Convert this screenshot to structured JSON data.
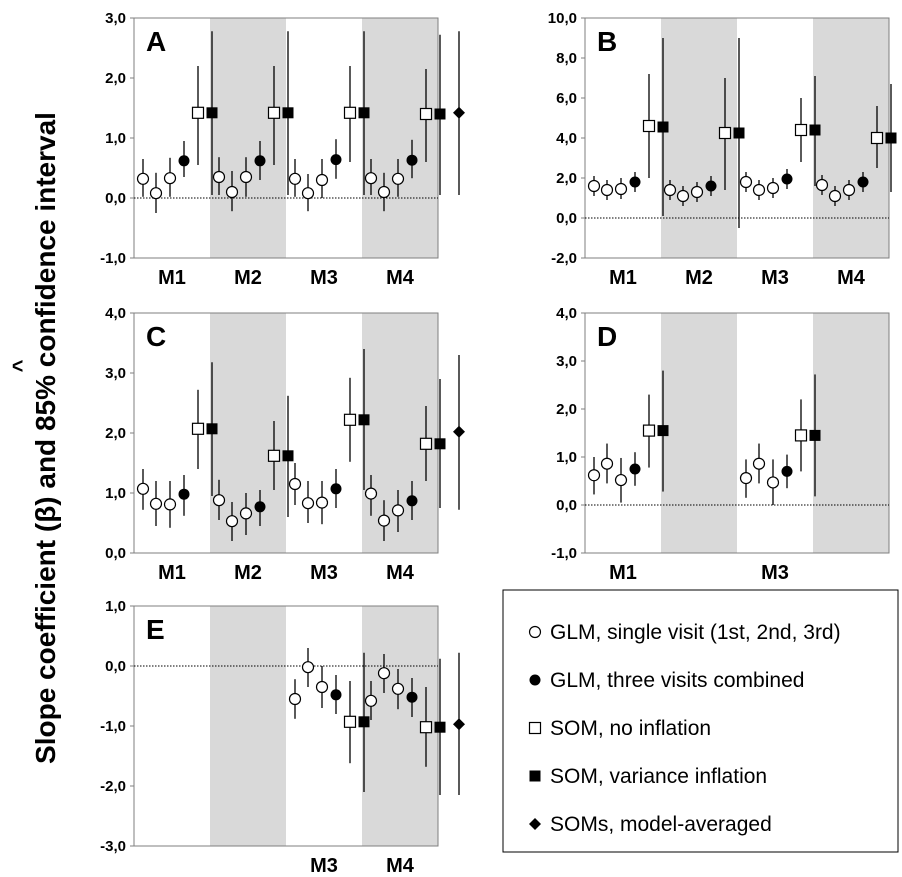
{
  "figure": {
    "ylabel": "Slope coefficient (β) and 85% confidence interval",
    "ylabel_hat": "^"
  },
  "legend": [
    {
      "marker": "circle-open",
      "label": "GLM, single visit (1st, 2nd, 3rd)"
    },
    {
      "marker": "circle-filled",
      "label": "GLM, three visits combined"
    },
    {
      "marker": "square-open",
      "label": "SOM, no inflation"
    },
    {
      "marker": "square-filled",
      "label": "SOM, variance inflation"
    },
    {
      "marker": "diamond-filled",
      "label": "SOMs, model-averaged"
    }
  ],
  "chart_data": [
    {
      "type": "scatter",
      "panel": "A",
      "ylim": [
        -1,
        3
      ],
      "yticks": [
        "-1,0",
        "0,0",
        "1,0",
        "2,0",
        "3,0"
      ],
      "categories": [
        "M1",
        "M2",
        "M3",
        "M4"
      ],
      "shaded": [
        1,
        3
      ],
      "points": [
        {
          "cat": 0,
          "slot": 0,
          "m": "co",
          "y": 0.32,
          "lo": 0.02,
          "hi": 0.65
        },
        {
          "cat": 0,
          "slot": 1,
          "m": "co",
          "y": 0.08,
          "lo": -0.25,
          "hi": 0.42
        },
        {
          "cat": 0,
          "slot": 2,
          "m": "co",
          "y": 0.33,
          "lo": 0.02,
          "hi": 0.67
        },
        {
          "cat": 0,
          "slot": 3,
          "m": "cf",
          "y": 0.62,
          "lo": 0.35,
          "hi": 0.95
        },
        {
          "cat": 0,
          "slot": 4,
          "m": "so",
          "y": 1.42,
          "lo": 0.55,
          "hi": 2.2
        },
        {
          "cat": 0,
          "slot": 5,
          "m": "sf",
          "y": 1.42,
          "lo": 0.05,
          "hi": 2.78
        },
        {
          "cat": 1,
          "slot": 0,
          "m": "co",
          "y": 0.35,
          "lo": 0.05,
          "hi": 0.68
        },
        {
          "cat": 1,
          "slot": 1,
          "m": "co",
          "y": 0.1,
          "lo": -0.22,
          "hi": 0.45
        },
        {
          "cat": 1,
          "slot": 2,
          "m": "co",
          "y": 0.35,
          "lo": 0.02,
          "hi": 0.68
        },
        {
          "cat": 1,
          "slot": 3,
          "m": "cf",
          "y": 0.62,
          "lo": 0.3,
          "hi": 0.95
        },
        {
          "cat": 1,
          "slot": 4,
          "m": "so",
          "y": 1.42,
          "lo": 0.55,
          "hi": 2.2
        },
        {
          "cat": 1,
          "slot": 5,
          "m": "sf",
          "y": 1.42,
          "lo": 0.05,
          "hi": 2.78
        },
        {
          "cat": 2,
          "slot": 0,
          "m": "co",
          "y": 0.32,
          "lo": 0.02,
          "hi": 0.65
        },
        {
          "cat": 2,
          "slot": 1,
          "m": "co",
          "y": 0.08,
          "lo": -0.22,
          "hi": 0.4
        },
        {
          "cat": 2,
          "slot": 2,
          "m": "co",
          "y": 0.3,
          "lo": 0.0,
          "hi": 0.65
        },
        {
          "cat": 2,
          "slot": 3,
          "m": "cf",
          "y": 0.64,
          "lo": 0.32,
          "hi": 0.98
        },
        {
          "cat": 2,
          "slot": 4,
          "m": "so",
          "y": 1.42,
          "lo": 0.6,
          "hi": 2.2
        },
        {
          "cat": 2,
          "slot": 5,
          "m": "sf",
          "y": 1.42,
          "lo": 0.05,
          "hi": 2.78
        },
        {
          "cat": 3,
          "slot": 0,
          "m": "co",
          "y": 0.33,
          "lo": 0.05,
          "hi": 0.65
        },
        {
          "cat": 3,
          "slot": 1,
          "m": "co",
          "y": 0.1,
          "lo": -0.22,
          "hi": 0.42
        },
        {
          "cat": 3,
          "slot": 2,
          "m": "co",
          "y": 0.32,
          "lo": 0.02,
          "hi": 0.65
        },
        {
          "cat": 3,
          "slot": 3,
          "m": "cf",
          "y": 0.63,
          "lo": 0.33,
          "hi": 0.97
        },
        {
          "cat": 3,
          "slot": 4,
          "m": "so",
          "y": 1.4,
          "lo": 0.6,
          "hi": 2.15
        },
        {
          "cat": 3,
          "slot": 5,
          "m": "sf",
          "y": 1.4,
          "lo": 0.05,
          "hi": 2.72
        },
        {
          "cat": 3,
          "slot": 7,
          "m": "df",
          "y": 1.42,
          "lo": 0.05,
          "hi": 2.78
        }
      ]
    },
    {
      "type": "scatter",
      "panel": "B",
      "ylim": [
        -2,
        10
      ],
      "yticks": [
        "-2,0",
        "0,0",
        "2,0",
        "4,0",
        "6,0",
        "8,0",
        "10,0"
      ],
      "categories": [
        "M1",
        "M2",
        "M3",
        "M4"
      ],
      "shaded": [
        1,
        3
      ],
      "points": [
        {
          "cat": 0,
          "slot": 0,
          "m": "co",
          "y": 1.6,
          "lo": 1.1,
          "hi": 2.1
        },
        {
          "cat": 0,
          "slot": 1,
          "m": "co",
          "y": 1.4,
          "lo": 0.9,
          "hi": 1.9
        },
        {
          "cat": 0,
          "slot": 2,
          "m": "co",
          "y": 1.45,
          "lo": 0.95,
          "hi": 2.0
        },
        {
          "cat": 0,
          "slot": 3,
          "m": "cf",
          "y": 1.8,
          "lo": 1.3,
          "hi": 2.3
        },
        {
          "cat": 0,
          "slot": 4,
          "m": "so",
          "y": 4.6,
          "lo": 2.0,
          "hi": 7.2
        },
        {
          "cat": 0,
          "slot": 5,
          "m": "sf",
          "y": 4.55,
          "lo": 0.1,
          "hi": 9.0
        },
        {
          "cat": 1,
          "slot": 0,
          "m": "co",
          "y": 1.4,
          "lo": 0.9,
          "hi": 1.9
        },
        {
          "cat": 1,
          "slot": 1,
          "m": "co",
          "y": 1.1,
          "lo": 0.6,
          "hi": 1.6
        },
        {
          "cat": 1,
          "slot": 2,
          "m": "co",
          "y": 1.3,
          "lo": 0.8,
          "hi": 1.8
        },
        {
          "cat": 1,
          "slot": 3,
          "m": "cf",
          "y": 1.6,
          "lo": 1.1,
          "hi": 2.1
        },
        {
          "cat": 1,
          "slot": 4,
          "m": "so",
          "y": 4.25,
          "lo": 1.4,
          "hi": 7.0
        },
        {
          "cat": 1,
          "slot": 5,
          "m": "sf",
          "y": 4.25,
          "lo": -0.5,
          "hi": 9.0
        },
        {
          "cat": 2,
          "slot": 0,
          "m": "co",
          "y": 1.8,
          "lo": 1.3,
          "hi": 2.3
        },
        {
          "cat": 2,
          "slot": 1,
          "m": "co",
          "y": 1.4,
          "lo": 0.9,
          "hi": 1.9
        },
        {
          "cat": 2,
          "slot": 2,
          "m": "co",
          "y": 1.5,
          "lo": 1.0,
          "hi": 2.0
        },
        {
          "cat": 2,
          "slot": 3,
          "m": "cf",
          "y": 1.95,
          "lo": 1.45,
          "hi": 2.45
        },
        {
          "cat": 2,
          "slot": 4,
          "m": "so",
          "y": 4.4,
          "lo": 2.8,
          "hi": 6.0
        },
        {
          "cat": 2,
          "slot": 5,
          "m": "sf",
          "y": 4.4,
          "lo": 1.6,
          "hi": 7.1
        },
        {
          "cat": 3,
          "slot": 0,
          "m": "co",
          "y": 1.65,
          "lo": 1.15,
          "hi": 2.15
        },
        {
          "cat": 3,
          "slot": 1,
          "m": "co",
          "y": 1.1,
          "lo": 0.6,
          "hi": 1.6
        },
        {
          "cat": 3,
          "slot": 2,
          "m": "co",
          "y": 1.4,
          "lo": 0.9,
          "hi": 1.9
        },
        {
          "cat": 3,
          "slot": 3,
          "m": "cf",
          "y": 1.8,
          "lo": 1.3,
          "hi": 2.3
        },
        {
          "cat": 3,
          "slot": 4,
          "m": "so",
          "y": 4.0,
          "lo": 2.5,
          "hi": 5.6
        },
        {
          "cat": 3,
          "slot": 5,
          "m": "sf",
          "y": 4.0,
          "lo": 1.3,
          "hi": 6.7
        }
      ]
    },
    {
      "type": "scatter",
      "panel": "C",
      "ylim": [
        0,
        4
      ],
      "yticks": [
        "0,0",
        "1,0",
        "2,0",
        "3,0",
        "4,0"
      ],
      "categories": [
        "M1",
        "M2",
        "M3",
        "M4"
      ],
      "shaded": [
        1,
        3
      ],
      "points": [
        {
          "cat": 0,
          "slot": 0,
          "m": "co",
          "y": 1.07,
          "lo": 0.72,
          "hi": 1.4
        },
        {
          "cat": 0,
          "slot": 1,
          "m": "co",
          "y": 0.82,
          "lo": 0.45,
          "hi": 1.2
        },
        {
          "cat": 0,
          "slot": 2,
          "m": "co",
          "y": 0.81,
          "lo": 0.42,
          "hi": 1.2
        },
        {
          "cat": 0,
          "slot": 3,
          "m": "cf",
          "y": 0.98,
          "lo": 0.62,
          "hi": 1.3
        },
        {
          "cat": 0,
          "slot": 4,
          "m": "so",
          "y": 2.07,
          "lo": 1.4,
          "hi": 2.72
        },
        {
          "cat": 0,
          "slot": 5,
          "m": "sf",
          "y": 2.07,
          "lo": 0.95,
          "hi": 3.18
        },
        {
          "cat": 1,
          "slot": 0,
          "m": "co",
          "y": 0.88,
          "lo": 0.55,
          "hi": 1.22
        },
        {
          "cat": 1,
          "slot": 1,
          "m": "co",
          "y": 0.53,
          "lo": 0.2,
          "hi": 0.85
        },
        {
          "cat": 1,
          "slot": 2,
          "m": "co",
          "y": 0.66,
          "lo": 0.3,
          "hi": 1.0
        },
        {
          "cat": 1,
          "slot": 3,
          "m": "cf",
          "y": 0.77,
          "lo": 0.45,
          "hi": 1.05
        },
        {
          "cat": 1,
          "slot": 4,
          "m": "so",
          "y": 1.62,
          "lo": 1.05,
          "hi": 2.2
        },
        {
          "cat": 1,
          "slot": 5,
          "m": "sf",
          "y": 1.62,
          "lo": 0.6,
          "hi": 2.62
        },
        {
          "cat": 2,
          "slot": 0,
          "m": "co",
          "y": 1.15,
          "lo": 0.8,
          "hi": 1.5
        },
        {
          "cat": 2,
          "slot": 1,
          "m": "co",
          "y": 0.83,
          "lo": 0.5,
          "hi": 1.2
        },
        {
          "cat": 2,
          "slot": 2,
          "m": "co",
          "y": 0.84,
          "lo": 0.48,
          "hi": 1.2
        },
        {
          "cat": 2,
          "slot": 3,
          "m": "cf",
          "y": 1.07,
          "lo": 0.75,
          "hi": 1.4
        },
        {
          "cat": 2,
          "slot": 4,
          "m": "so",
          "y": 2.22,
          "lo": 1.52,
          "hi": 2.92
        },
        {
          "cat": 2,
          "slot": 5,
          "m": "sf",
          "y": 2.22,
          "lo": 1.05,
          "hi": 3.4
        },
        {
          "cat": 3,
          "slot": 0,
          "m": "co",
          "y": 0.99,
          "lo": 0.62,
          "hi": 1.3
        },
        {
          "cat": 3,
          "slot": 1,
          "m": "co",
          "y": 0.54,
          "lo": 0.2,
          "hi": 0.88
        },
        {
          "cat": 3,
          "slot": 2,
          "m": "co",
          "y": 0.71,
          "lo": 0.35,
          "hi": 1.05
        },
        {
          "cat": 3,
          "slot": 3,
          "m": "cf",
          "y": 0.87,
          "lo": 0.55,
          "hi": 1.2
        },
        {
          "cat": 3,
          "slot": 4,
          "m": "so",
          "y": 1.82,
          "lo": 1.2,
          "hi": 2.45
        },
        {
          "cat": 3,
          "slot": 5,
          "m": "sf",
          "y": 1.82,
          "lo": 0.75,
          "hi": 2.9
        },
        {
          "cat": 3,
          "slot": 7,
          "m": "df",
          "y": 2.02,
          "lo": 0.72,
          "hi": 3.3
        }
      ]
    },
    {
      "type": "scatter",
      "panel": "D",
      "ylim": [
        -1,
        4
      ],
      "yticks": [
        "-1,0",
        "0,0",
        "1,0",
        "2,0",
        "3,0",
        "4,0"
      ],
      "categories": [
        "M1",
        "",
        "M3",
        ""
      ],
      "shaded": [
        1,
        3
      ],
      "points": [
        {
          "cat": 0,
          "slot": 0,
          "m": "co",
          "y": 0.62,
          "lo": 0.22,
          "hi": 1.0
        },
        {
          "cat": 0,
          "slot": 1,
          "m": "co",
          "y": 0.86,
          "lo": 0.45,
          "hi": 1.28
        },
        {
          "cat": 0,
          "slot": 2,
          "m": "co",
          "y": 0.52,
          "lo": 0.05,
          "hi": 0.98
        },
        {
          "cat": 0,
          "slot": 3,
          "m": "cf",
          "y": 0.75,
          "lo": 0.4,
          "hi": 1.1
        },
        {
          "cat": 0,
          "slot": 4,
          "m": "so",
          "y": 1.55,
          "lo": 0.78,
          "hi": 2.3
        },
        {
          "cat": 0,
          "slot": 5,
          "m": "sf",
          "y": 1.55,
          "lo": 0.28,
          "hi": 2.8
        },
        {
          "cat": 2,
          "slot": 0,
          "m": "co",
          "y": 0.56,
          "lo": 0.15,
          "hi": 0.95
        },
        {
          "cat": 2,
          "slot": 1,
          "m": "co",
          "y": 0.86,
          "lo": 0.45,
          "hi": 1.28
        },
        {
          "cat": 2,
          "slot": 2,
          "m": "co",
          "y": 0.47,
          "lo": 0.0,
          "hi": 0.95
        },
        {
          "cat": 2,
          "slot": 3,
          "m": "cf",
          "y": 0.7,
          "lo": 0.35,
          "hi": 1.05
        },
        {
          "cat": 2,
          "slot": 4,
          "m": "so",
          "y": 1.45,
          "lo": 0.7,
          "hi": 2.2
        },
        {
          "cat": 2,
          "slot": 5,
          "m": "sf",
          "y": 1.45,
          "lo": 0.18,
          "hi": 2.72
        }
      ]
    },
    {
      "type": "scatter",
      "panel": "E",
      "ylim": [
        -3,
        1
      ],
      "yticks": [
        "-3,0",
        "-2,0",
        "-1,0",
        "0,0",
        "1,0"
      ],
      "categories": [
        "",
        "",
        "M3",
        "M4"
      ],
      "shaded": [
        1,
        3
      ],
      "points": [
        {
          "cat": 2,
          "slot": 0,
          "m": "co",
          "y": -0.55,
          "lo": -0.88,
          "hi": -0.22
        },
        {
          "cat": 2,
          "slot": 1,
          "m": "co",
          "y": -0.02,
          "lo": -0.35,
          "hi": 0.3
        },
        {
          "cat": 2,
          "slot": 2,
          "m": "co",
          "y": -0.35,
          "lo": -0.7,
          "hi": 0.0
        },
        {
          "cat": 2,
          "slot": 3,
          "m": "cf",
          "y": -0.48,
          "lo": -0.8,
          "hi": -0.15
        },
        {
          "cat": 2,
          "slot": 4,
          "m": "so",
          "y": -0.93,
          "lo": -1.62,
          "hi": -0.25
        },
        {
          "cat": 2,
          "slot": 5,
          "m": "sf",
          "y": -0.93,
          "lo": -2.1,
          "hi": 0.22
        },
        {
          "cat": 3,
          "slot": 0,
          "m": "co",
          "y": -0.58,
          "lo": -0.9,
          "hi": -0.25
        },
        {
          "cat": 3,
          "slot": 1,
          "m": "co",
          "y": -0.12,
          "lo": -0.45,
          "hi": 0.2
        },
        {
          "cat": 3,
          "slot": 2,
          "m": "co",
          "y": -0.38,
          "lo": -0.72,
          "hi": -0.05
        },
        {
          "cat": 3,
          "slot": 3,
          "m": "cf",
          "y": -0.52,
          "lo": -0.85,
          "hi": -0.2
        },
        {
          "cat": 3,
          "slot": 4,
          "m": "so",
          "y": -1.02,
          "lo": -1.68,
          "hi": -0.35
        },
        {
          "cat": 3,
          "slot": 5,
          "m": "sf",
          "y": -1.02,
          "lo": -2.15,
          "hi": 0.12
        },
        {
          "cat": 3,
          "slot": 7,
          "m": "df",
          "y": -0.97,
          "lo": -2.15,
          "hi": 0.22
        }
      ]
    }
  ]
}
